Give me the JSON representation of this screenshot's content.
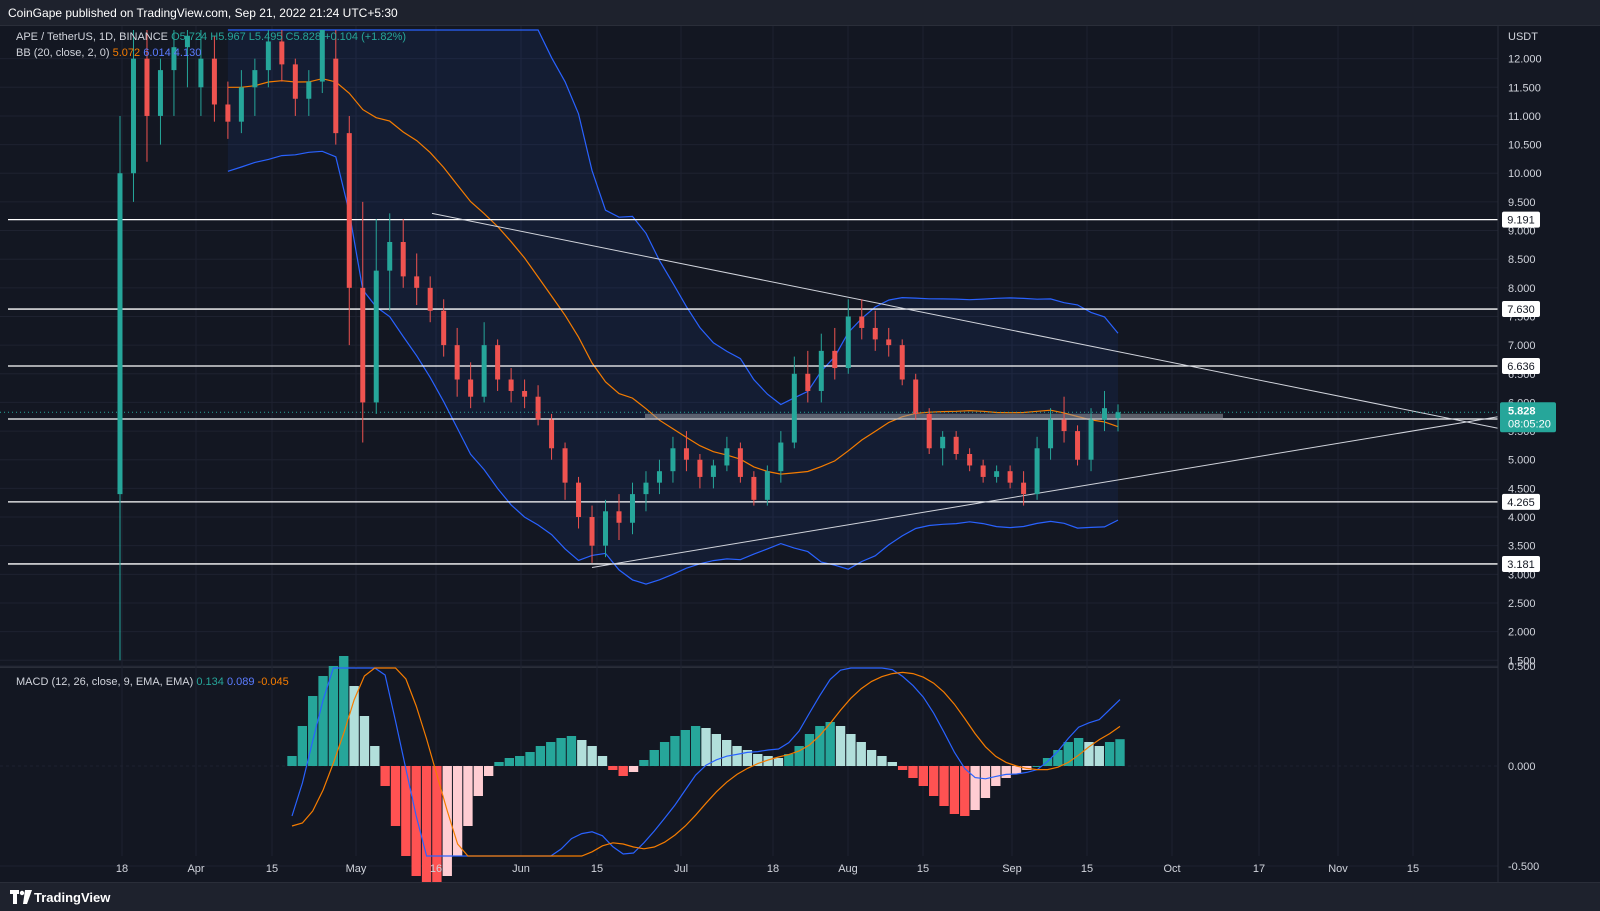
{
  "header": {
    "published_text": "CoinGape published on TradingView.com, Sep 21, 2022 21:24 UTC+5:30"
  },
  "footer": {
    "brand": "TradingView"
  },
  "legend": {
    "symbol": "APE / TetherUS, 1D, BINANCE",
    "open": "O5.724",
    "high": "H5.967",
    "low": "L5.495",
    "close": "C5.828",
    "change": "+0.104 (+1.82%)",
    "bb_label": "BB (20, close, 2, 0)",
    "bb_basis": "5.072",
    "bb_upper": "6.014",
    "bb_lower": "4.130"
  },
  "macd_legend": {
    "label": "MACD (12, 26, close, 9, EMA, EMA)",
    "hist": "0.134",
    "macd": "0.089",
    "signal": "-0.045"
  },
  "colors": {
    "up": "#26a69a",
    "down": "#ef5350",
    "bb_band": "#2962ff",
    "bb_basis": "#f57c00",
    "background": "#131722"
  },
  "chart_data": {
    "type": "candlestick",
    "symbol": "APE / TetherUS",
    "timeframe": "1D",
    "exchange": "BINANCE",
    "currency": "USDT",
    "price_ticks": [
      "12.000",
      "11.500",
      "11.000",
      "10.500",
      "10.000",
      "9.500",
      "9.000",
      "8.500",
      "8.000",
      "7.500",
      "7.000",
      "6.500",
      "6.000",
      "5.500",
      "5.000",
      "4.500",
      "4.000",
      "3.500",
      "3.000",
      "2.500",
      "2.000",
      "1.500"
    ],
    "time_ticks": [
      "18",
      "Apr",
      "15",
      "May",
      "16",
      "Jun",
      "15",
      "Jul",
      "18",
      "Aug",
      "15",
      "Sep",
      "15",
      "Oct",
      "17",
      "Nov",
      "15"
    ],
    "macd_ticks": [
      "0.500",
      "0.000",
      "-0.500"
    ],
    "ylim": [
      1.4,
      12.5
    ],
    "horizontal_levels": [
      {
        "price": 9.191,
        "label": "9.191"
      },
      {
        "price": 7.63,
        "label": "7.630"
      },
      {
        "price": 6.636,
        "label": "6.636"
      },
      {
        "price": 5.711,
        "label": "5.711"
      },
      {
        "price": 4.265,
        "label": "4.265"
      },
      {
        "price": 3.181,
        "label": "3.181"
      }
    ],
    "last_price": {
      "price": 5.828,
      "label": "5.828",
      "countdown": "08:05:20"
    },
    "candles": [
      [
        4.4,
        11.0,
        1.5,
        10.0
      ],
      [
        10.0,
        12.5,
        9.5,
        12.0
      ],
      [
        12.0,
        12.6,
        10.2,
        11.0
      ],
      [
        11.0,
        12.0,
        10.5,
        11.8
      ],
      [
        11.8,
        12.5,
        11.0,
        12.2
      ],
      [
        12.2,
        12.7,
        11.5,
        12.4
      ],
      [
        11.5,
        12.5,
        11.0,
        12.0
      ],
      [
        12.0,
        12.4,
        10.9,
        11.2
      ],
      [
        11.2,
        11.6,
        10.6,
        10.9
      ],
      [
        10.9,
        11.8,
        10.7,
        11.5
      ],
      [
        11.5,
        12.0,
        11.0,
        11.8
      ],
      [
        11.8,
        12.6,
        11.5,
        12.3
      ],
      [
        12.3,
        12.7,
        11.6,
        11.9
      ],
      [
        11.9,
        12.0,
        11.0,
        11.3
      ],
      [
        11.3,
        11.8,
        11.0,
        11.6
      ],
      [
        11.6,
        12.6,
        11.4,
        12.5
      ],
      [
        12.0,
        12.6,
        10.5,
        10.7
      ],
      [
        10.7,
        11.0,
        7.0,
        8.0
      ],
      [
        8.0,
        9.5,
        5.3,
        6.0
      ],
      [
        6.0,
        9.2,
        5.8,
        8.3
      ],
      [
        8.3,
        9.3,
        7.6,
        8.8
      ],
      [
        8.8,
        9.2,
        8.0,
        8.2
      ],
      [
        8.2,
        8.6,
        7.7,
        8.0
      ],
      [
        8.0,
        8.2,
        7.4,
        7.6
      ],
      [
        7.6,
        7.8,
        6.8,
        7.0
      ],
      [
        7.0,
        7.3,
        6.1,
        6.4
      ],
      [
        6.4,
        6.7,
        5.9,
        6.1
      ],
      [
        6.1,
        7.4,
        6.0,
        7.0
      ],
      [
        7.0,
        7.1,
        6.2,
        6.4
      ],
      [
        6.4,
        6.6,
        6.0,
        6.2
      ],
      [
        6.2,
        6.4,
        5.9,
        6.1
      ],
      [
        6.1,
        6.3,
        5.6,
        5.7
      ],
      [
        5.7,
        5.8,
        5.0,
        5.2
      ],
      [
        5.2,
        5.3,
        4.3,
        4.6
      ],
      [
        4.6,
        4.7,
        3.8,
        4.0
      ],
      [
        4.0,
        4.2,
        3.2,
        3.5
      ],
      [
        3.5,
        4.3,
        3.3,
        4.1
      ],
      [
        4.1,
        4.4,
        3.6,
        3.9
      ],
      [
        3.9,
        4.6,
        3.7,
        4.4
      ],
      [
        4.4,
        4.8,
        4.1,
        4.6
      ],
      [
        4.6,
        5.0,
        4.4,
        4.8
      ],
      [
        4.8,
        5.4,
        4.6,
        5.2
      ],
      [
        5.2,
        5.5,
        4.8,
        5.0
      ],
      [
        5.0,
        5.1,
        4.5,
        4.7
      ],
      [
        4.7,
        5.0,
        4.5,
        4.9
      ],
      [
        4.9,
        5.4,
        4.8,
        5.2
      ],
      [
        5.2,
        5.3,
        4.6,
        4.7
      ],
      [
        4.7,
        4.8,
        4.2,
        4.3
      ],
      [
        4.3,
        4.9,
        4.2,
        4.8
      ],
      [
        4.8,
        5.5,
        4.6,
        5.3
      ],
      [
        5.3,
        6.8,
        5.2,
        6.5
      ],
      [
        6.5,
        6.9,
        6.0,
        6.2
      ],
      [
        6.2,
        7.2,
        6.0,
        6.9
      ],
      [
        6.9,
        7.3,
        6.4,
        6.6
      ],
      [
        6.6,
        7.8,
        6.5,
        7.5
      ],
      [
        7.5,
        7.8,
        7.1,
        7.3
      ],
      [
        7.3,
        7.6,
        6.9,
        7.1
      ],
      [
        7.1,
        7.3,
        6.8,
        7.0
      ],
      [
        7.0,
        7.1,
        6.3,
        6.4
      ],
      [
        6.4,
        6.5,
        5.7,
        5.8
      ],
      [
        5.8,
        5.9,
        5.1,
        5.2
      ],
      [
        5.2,
        5.5,
        4.9,
        5.4
      ],
      [
        5.4,
        5.5,
        5.0,
        5.1
      ],
      [
        5.1,
        5.2,
        4.8,
        4.9
      ],
      [
        4.9,
        5.0,
        4.6,
        4.7
      ],
      [
        4.7,
        4.9,
        4.6,
        4.8
      ],
      [
        4.8,
        4.9,
        4.5,
        4.6
      ],
      [
        4.6,
        4.8,
        4.2,
        4.4
      ],
      [
        4.4,
        5.4,
        4.3,
        5.2
      ],
      [
        5.2,
        5.9,
        5.0,
        5.7
      ],
      [
        5.7,
        6.1,
        5.3,
        5.5
      ],
      [
        5.5,
        5.6,
        4.9,
        5.0
      ],
      [
        5.0,
        5.9,
        4.8,
        5.7
      ],
      [
        5.7,
        6.2,
        5.5,
        5.9
      ],
      [
        5.724,
        5.967,
        5.495,
        5.828
      ]
    ],
    "macd": {
      "histogram": [
        0.05,
        0.2,
        0.35,
        0.45,
        0.5,
        0.55,
        0.4,
        0.25,
        0.1,
        -0.1,
        -0.3,
        -0.45,
        -0.55,
        -0.6,
        -0.6,
        -0.55,
        -0.45,
        -0.3,
        -0.15,
        -0.05,
        0.02,
        0.04,
        0.05,
        0.07,
        0.1,
        0.12,
        0.14,
        0.15,
        0.13,
        0.1,
        0.05,
        -0.02,
        -0.05,
        -0.03,
        0.03,
        0.08,
        0.12,
        0.15,
        0.18,
        0.2,
        0.19,
        0.16,
        0.13,
        0.1,
        0.08,
        0.06,
        0.05,
        0.04,
        0.06,
        0.1,
        0.16,
        0.2,
        0.22,
        0.2,
        0.16,
        0.12,
        0.08,
        0.05,
        0.02,
        -0.02,
        -0.06,
        -0.1,
        -0.15,
        -0.2,
        -0.24,
        -0.25,
        -0.22,
        -0.16,
        -0.1,
        -0.06,
        -0.04,
        -0.02,
        0.0,
        0.04,
        0.08,
        0.12,
        0.14,
        0.12,
        0.1,
        0.12,
        0.134
      ]
    }
  }
}
